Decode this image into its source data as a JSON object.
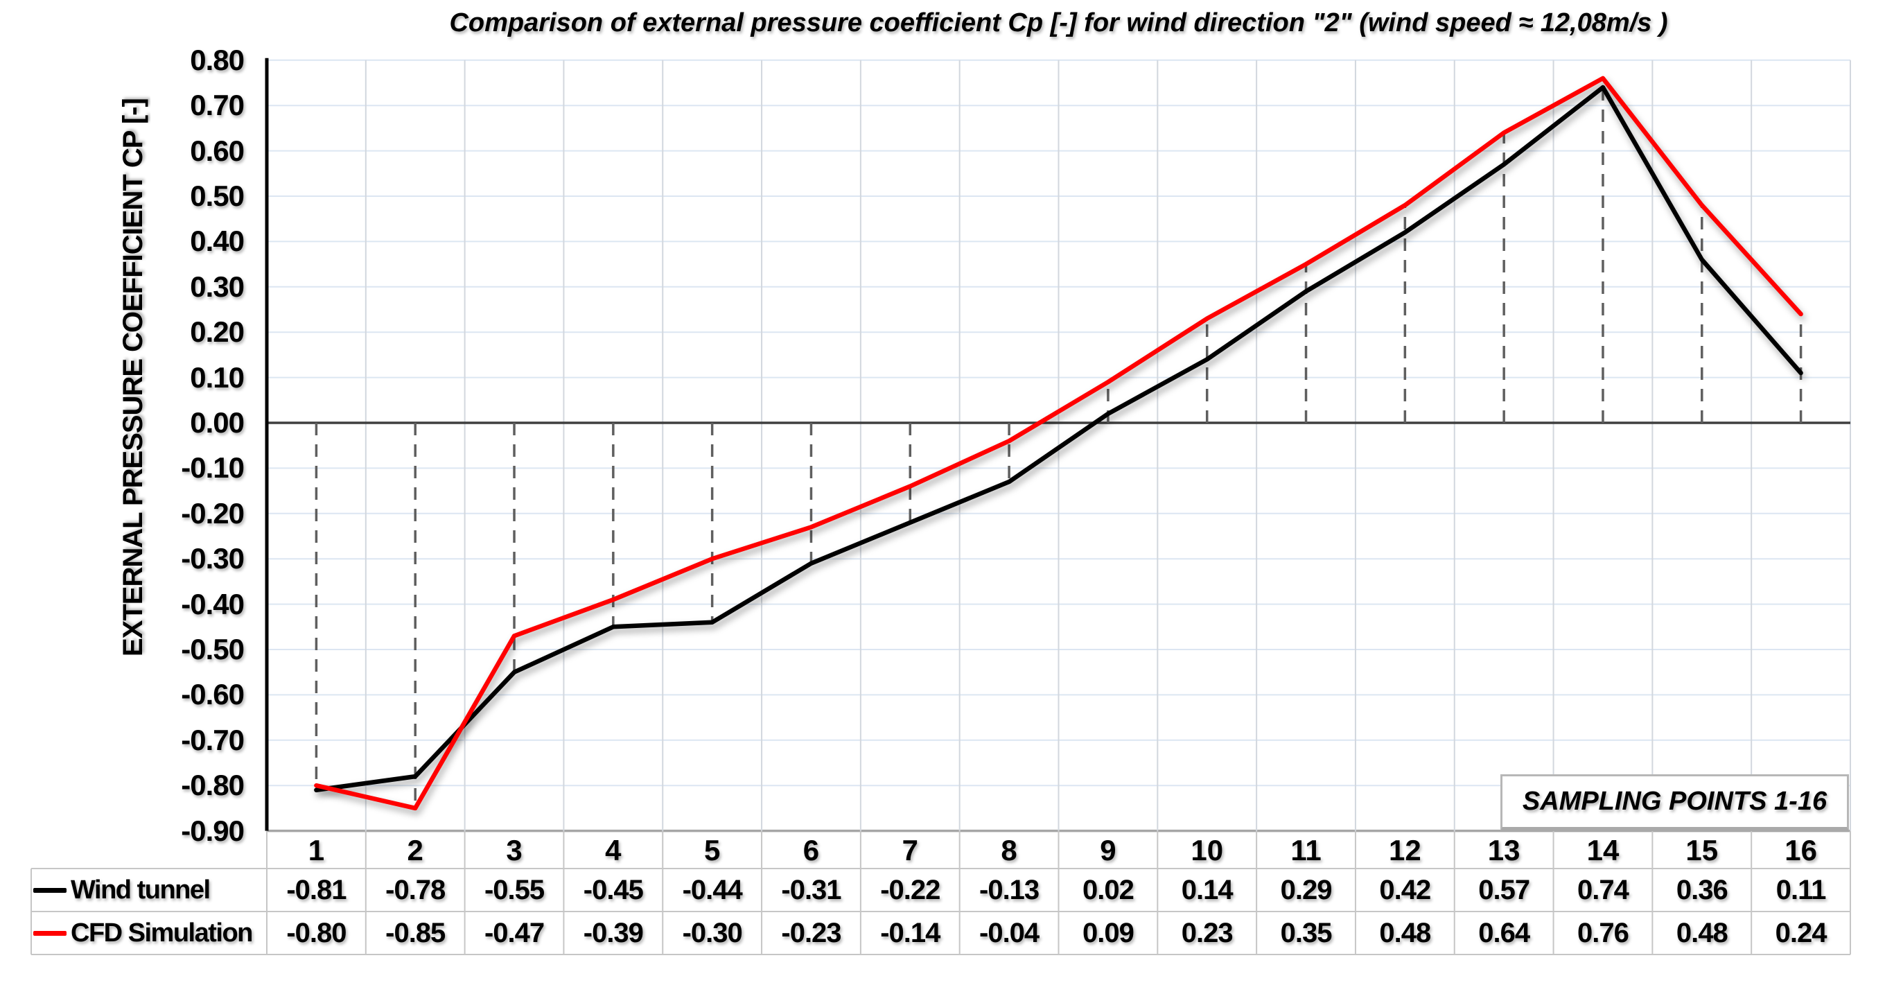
{
  "chart_data": {
    "type": "line",
    "title": "Comparison of external pressure coefficient Cp [-] for wind direction \"2\" (wind speed ≈ 12,08m/s )",
    "xlabel": "SAMPLING POINTS 1-16",
    "ylabel": "EXTERNAL PRESSURE COEFFICIENT CP [-]",
    "categories": [
      "1",
      "2",
      "3",
      "4",
      "5",
      "6",
      "7",
      "8",
      "9",
      "10",
      "11",
      "12",
      "13",
      "14",
      "15",
      "16"
    ],
    "y_ticks": [
      "0.80",
      "0.70",
      "0.60",
      "0.50",
      "0.40",
      "0.30",
      "0.20",
      "0.10",
      "0.00",
      "-0.10",
      "-0.20",
      "-0.30",
      "-0.40",
      "-0.50",
      "-0.60",
      "-0.70",
      "-0.80",
      "-0.90"
    ],
    "ylim": [
      -0.9,
      0.8
    ],
    "grid": true,
    "drop_lines": true,
    "legend_position": "data-table-left",
    "series": [
      {
        "name": "Wind tunnel",
        "color": "#000000",
        "values": [
          -0.81,
          -0.78,
          -0.55,
          -0.45,
          -0.44,
          -0.31,
          -0.22,
          -0.13,
          0.02,
          0.14,
          0.29,
          0.42,
          0.57,
          0.74,
          0.36,
          0.11
        ]
      },
      {
        "name": "CFD Simulation",
        "color": "#ff0000",
        "values": [
          -0.8,
          -0.85,
          -0.47,
          -0.39,
          -0.3,
          -0.23,
          -0.14,
          -0.04,
          0.09,
          0.23,
          0.35,
          0.48,
          0.64,
          0.76,
          0.48,
          0.24
        ]
      }
    ]
  }
}
